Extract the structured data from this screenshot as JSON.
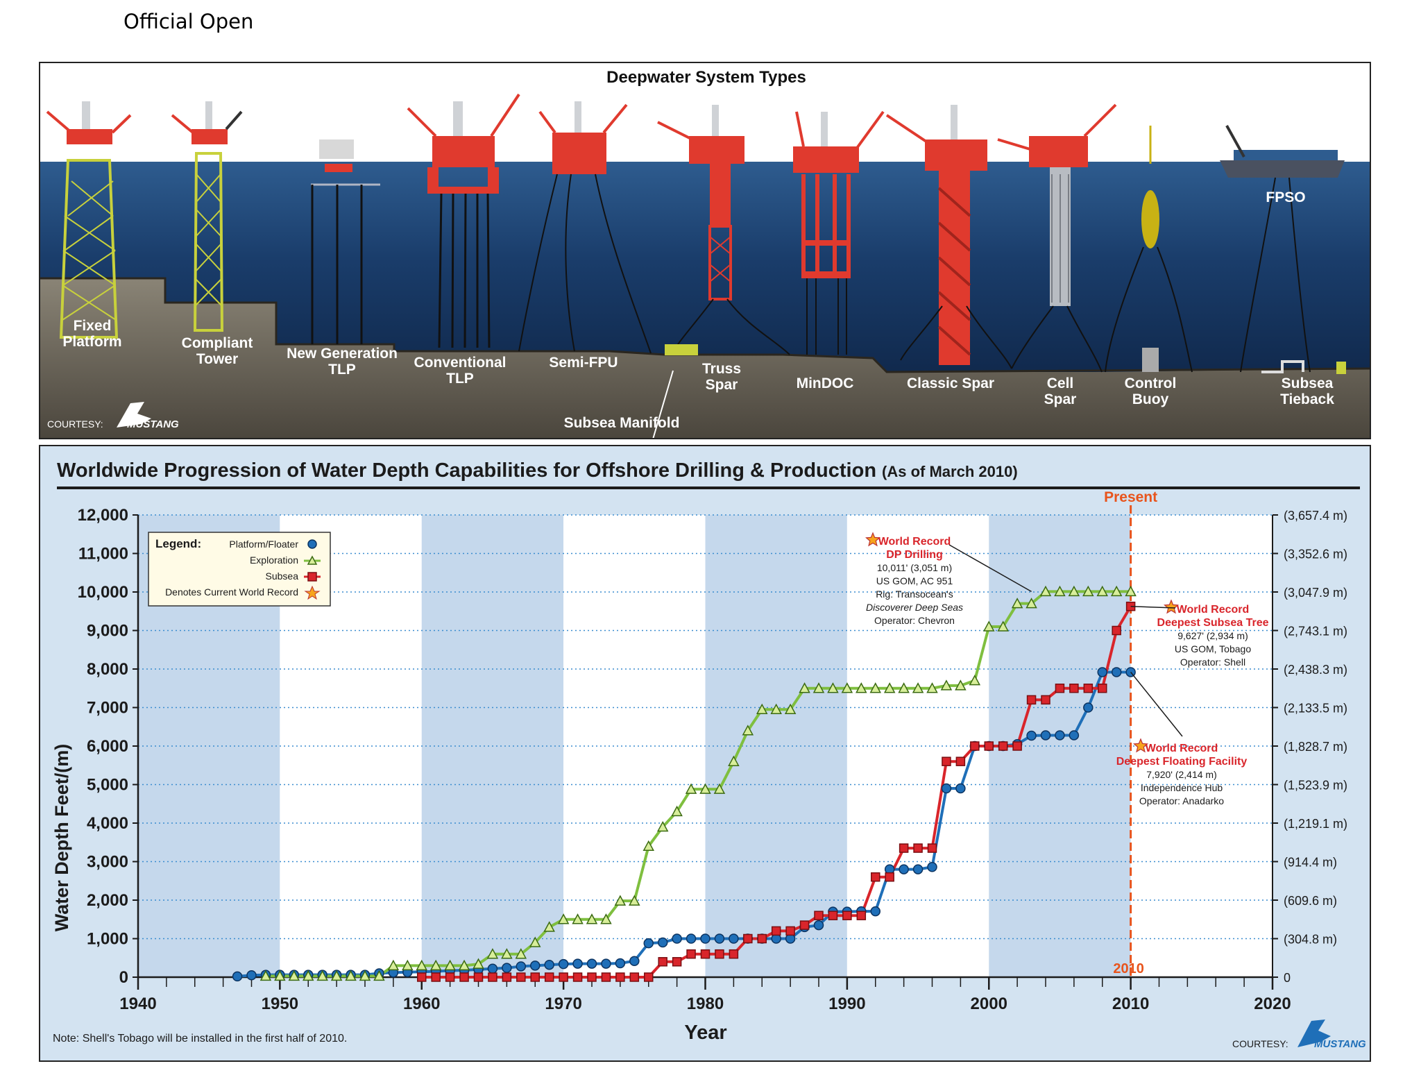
{
  "header": {
    "label": "Official Open"
  },
  "diagram": {
    "title": "Deepwater System Types",
    "systems": [
      {
        "label": "Fixed Platform",
        "lines": [
          "Fixed",
          "Platform"
        ]
      },
      {
        "label": "Compliant Tower",
        "lines": [
          "Compliant",
          "Tower"
        ]
      },
      {
        "label": "New Generation TLP",
        "lines": [
          "New Generation",
          "TLP"
        ]
      },
      {
        "label": "Conventional TLP",
        "lines": [
          "Conventional",
          "TLP"
        ]
      },
      {
        "label": "Semi-FPU",
        "lines": [
          "Semi-FPU"
        ]
      },
      {
        "label": "Truss Spar",
        "lines": [
          "Truss",
          "Spar"
        ]
      },
      {
        "label": "MinDOC",
        "lines": [
          "MinDOC"
        ]
      },
      {
        "label": "Classic Spar",
        "lines": [
          "Classic Spar"
        ]
      },
      {
        "label": "Cell Spar",
        "lines": [
          "Cell",
          "Spar"
        ]
      },
      {
        "label": "Control Buoy",
        "lines": [
          "Control",
          "Buoy"
        ]
      },
      {
        "label": "Subsea Tieback",
        "lines": [
          "Subsea",
          "Tieback"
        ]
      }
    ],
    "fpso_label": "FPSO",
    "manifold_label": "Subsea Manifold",
    "courtesy": "COURTESY:",
    "logo_text": "MUSTANG"
  },
  "chart_data": {
    "type": "line",
    "title": "Worldwide Progression of Water Depth Capabilities for Offshore Drilling & Production",
    "subtitle": "(As of March 2010)",
    "xlabel": "Year",
    "ylabel": "Water Depth Feet/(m)",
    "xlim": [
      1940,
      2020
    ],
    "ylim": [
      0,
      12000
    ],
    "x_ticks": [
      "1940",
      "1950",
      "1960",
      "1970",
      "1980",
      "1990",
      "2000",
      "2010",
      "2020"
    ],
    "y_ticks_left": [
      "0",
      "1,000",
      "2,000",
      "3,000",
      "4,000",
      "5,000",
      "6,000",
      "7,000",
      "8,000",
      "9,000",
      "10,000",
      "11,000",
      "12,000"
    ],
    "y_ticks_right": [
      "0",
      "(304.8 m)",
      "(609.6 m)",
      "(914.4 m)",
      "(1,219.1 m)",
      "(1,523.9 m)",
      "(1,828.7 m)",
      "(2,133.5 m)",
      "(2,438.3 m)",
      "(2,743.1 m)",
      "(3,047.9 m)",
      "(3,352.6 m)",
      "(3,657.4 m)"
    ],
    "grid": "horizontal dotted",
    "legend": {
      "title": "Legend:",
      "placement": "top-left",
      "entries": [
        "Platform/Floater",
        "Exploration",
        "Subsea",
        "Denotes Current World Record"
      ]
    },
    "present": {
      "label": "Present",
      "year_label": "2010",
      "x": 2010
    },
    "series": [
      {
        "name": "Platform/Floater",
        "color": "#1f6fb8",
        "marker": "circle",
        "x": [
          1947,
          1948,
          1949,
          1950,
          1951,
          1952,
          1953,
          1954,
          1955,
          1956,
          1957,
          1958,
          1959,
          1960,
          1961,
          1962,
          1963,
          1964,
          1965,
          1966,
          1967,
          1968,
          1969,
          1970,
          1971,
          1972,
          1973,
          1974,
          1975,
          1976,
          1977,
          1978,
          1979,
          1980,
          1981,
          1982,
          1983,
          1984,
          1985,
          1986,
          1987,
          1988,
          1989,
          1990,
          1991,
          1992,
          1993,
          1994,
          1995,
          1996,
          1997,
          1998,
          1999,
          2000,
          2001,
          2002,
          2003,
          2004,
          2005,
          2006,
          2007,
          2008,
          2009,
          2010
        ],
        "y": [
          20,
          50,
          60,
          60,
          60,
          60,
          60,
          60,
          60,
          60,
          100,
          120,
          130,
          140,
          150,
          170,
          180,
          200,
          220,
          240,
          280,
          300,
          320,
          340,
          350,
          350,
          350,
          360,
          420,
          880,
          900,
          1000,
          1000,
          1000,
          1000,
          1000,
          1000,
          1000,
          1000,
          1000,
          1300,
          1350,
          1700,
          1700,
          1710,
          1710,
          2800,
          2800,
          2800,
          2860,
          4900,
          4900,
          6000,
          6000,
          6000,
          6050,
          6270,
          6280,
          6280,
          6280,
          7000,
          7920,
          7920,
          7920
        ]
      },
      {
        "name": "Exploration",
        "color": "#7fbf3f",
        "marker": "triangle",
        "x": [
          1949,
          1950,
          1951,
          1952,
          1953,
          1954,
          1955,
          1956,
          1957,
          1958,
          1959,
          1960,
          1961,
          1962,
          1963,
          1964,
          1965,
          1966,
          1967,
          1968,
          1969,
          1970,
          1971,
          1972,
          1973,
          1974,
          1975,
          1976,
          1977,
          1978,
          1979,
          1980,
          1981,
          1982,
          1983,
          1984,
          1985,
          1986,
          1987,
          1988,
          1989,
          1990,
          1991,
          1992,
          1993,
          1994,
          1995,
          1996,
          1997,
          1998,
          1999,
          2000,
          2001,
          2002,
          2003,
          2004,
          2005,
          2006,
          2007,
          2008,
          2009,
          2010
        ],
        "y": [
          30,
          30,
          30,
          30,
          30,
          30,
          30,
          30,
          30,
          300,
          300,
          300,
          300,
          300,
          300,
          340,
          600,
          600,
          600,
          900,
          1300,
          1500,
          1500,
          1500,
          1500,
          1980,
          1980,
          3400,
          3900,
          4300,
          4880,
          4880,
          4880,
          5600,
          6400,
          6950,
          6950,
          6950,
          7500,
          7500,
          7500,
          7500,
          7500,
          7500,
          7500,
          7500,
          7500,
          7500,
          7570,
          7570,
          7700,
          9100,
          9100,
          9700,
          9700,
          10011,
          10011,
          10011,
          10011,
          10011,
          10011,
          10011
        ]
      },
      {
        "name": "Subsea",
        "color": "#d9252b",
        "marker": "square",
        "x": [
          1960,
          1961,
          1962,
          1963,
          1964,
          1965,
          1966,
          1967,
          1968,
          1969,
          1970,
          1971,
          1972,
          1973,
          1974,
          1975,
          1976,
          1977,
          1978,
          1979,
          1980,
          1981,
          1982,
          1983,
          1984,
          1985,
          1986,
          1987,
          1988,
          1989,
          1990,
          1991,
          1992,
          1993,
          1994,
          1995,
          1996,
          1997,
          1998,
          1999,
          2000,
          2001,
          2002,
          2003,
          2004,
          2005,
          2006,
          2007,
          2008,
          2009,
          2010
        ],
        "y": [
          0,
          0,
          0,
          0,
          0,
          0,
          0,
          0,
          0,
          0,
          0,
          0,
          0,
          0,
          0,
          0,
          0,
          400,
          400,
          600,
          600,
          600,
          600,
          1000,
          1000,
          1200,
          1200,
          1350,
          1600,
          1600,
          1600,
          1600,
          2600,
          2600,
          3350,
          3350,
          3350,
          5600,
          5600,
          6000,
          6000,
          6000,
          6000,
          7200,
          7200,
          7500,
          7500,
          7500,
          7500,
          9000,
          9627
        ]
      }
    ],
    "annotations": [
      {
        "lines": [
          "World Record",
          "DP Drilling",
          "10,011' (3,051 m)",
          "US GOM, AC 951",
          "Rig: Transocean's",
          "Discoverer Deep Seas",
          "Operator: Chevron"
        ],
        "target": [
          2003,
          10011
        ]
      },
      {
        "lines": [
          "World Record",
          "Deepest Subsea Tree",
          "9,627' (2,934 m)",
          "US GOM, Tobago",
          "Operator: Shell"
        ],
        "target": [
          2010,
          9627
        ]
      },
      {
        "lines": [
          "World Record",
          "Deepest Floating Facility",
          "7,920' (2,414 m)",
          "Independence Hub",
          "Operator: Anadarko"
        ],
        "target": [
          2010,
          7920
        ]
      }
    ],
    "note": "Note: Shell's Tobago will be installed in the first half of 2010.",
    "courtesy": "COURTESY:",
    "logo_text": "MUSTANG",
    "colors": {
      "background": "#d3e3f1",
      "band_light": "#ffffff",
      "band_dark": "#c5d8ec",
      "present_line": "#e8541c"
    }
  }
}
